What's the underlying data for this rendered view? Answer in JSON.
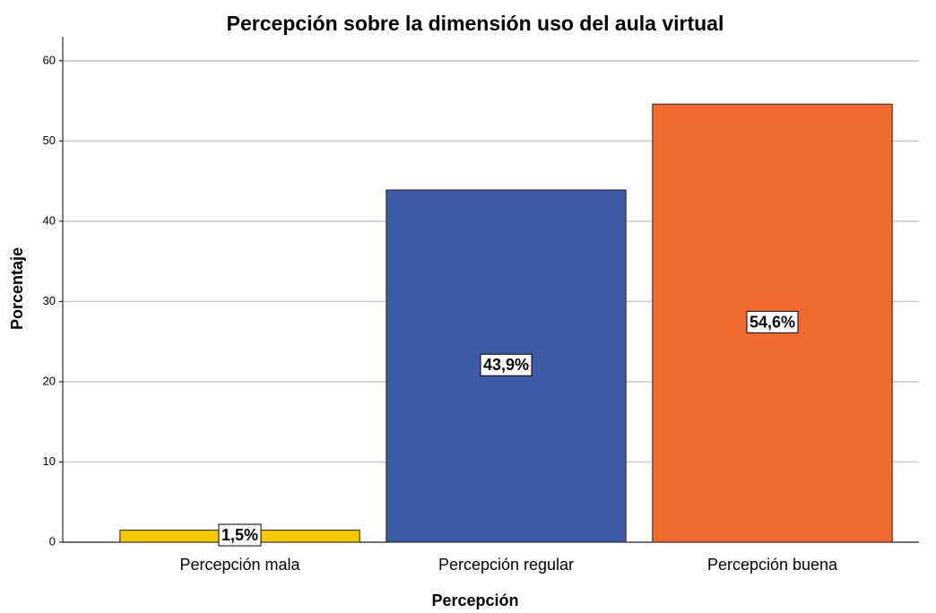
{
  "chart_data": {
    "type": "bar",
    "title": "Percepción sobre la dimensión uso del aula virtual",
    "x_label": "Percepción",
    "y_label": "Porcentaje",
    "categories": [
      "Percepción mala",
      "Percepción regular",
      "Percepción buena"
    ],
    "values": [
      1.5,
      43.9,
      54.6
    ],
    "value_labels": [
      "1,5%",
      "43,9%",
      "54,6%"
    ],
    "colors": [
      "#f7c900",
      "#3e5ba8",
      "#f26b2d"
    ],
    "ylim": [
      0,
      63
    ],
    "yticks": [
      0,
      10,
      20,
      30,
      40,
      50,
      60
    ],
    "grid": true
  }
}
